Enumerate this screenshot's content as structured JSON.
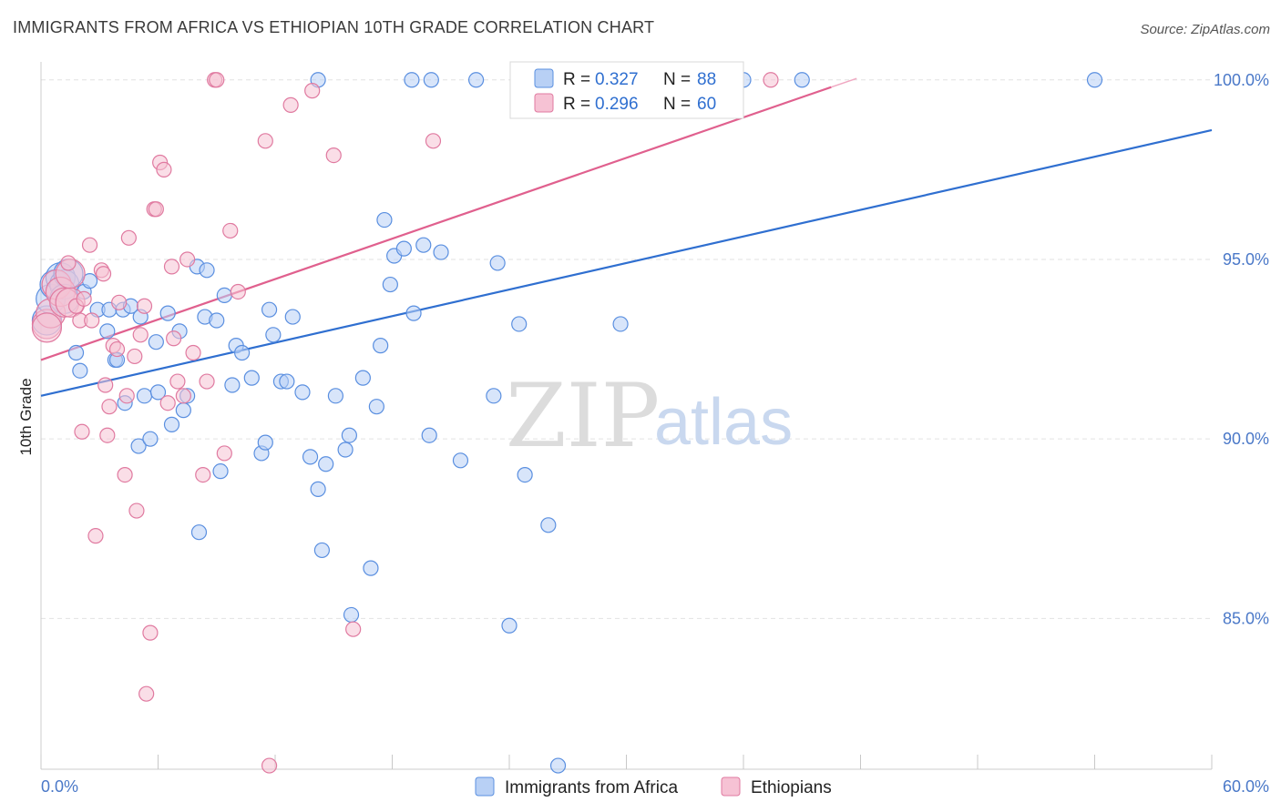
{
  "title": "IMMIGRANTS FROM AFRICA VS ETHIOPIAN 10TH GRADE CORRELATION CHART",
  "source": "Source: ZipAtlas.com",
  "watermark": {
    "zip": "ZIP",
    "atlas": "atlas"
  },
  "legend": {
    "r_label": "R =",
    "n_label": "N =",
    "entries": [
      {
        "r": "0.327",
        "n": "88",
        "color": "#5a8fe0",
        "fill": "#b8d0f5"
      },
      {
        "r": "0.296",
        "n": "60",
        "color": "#e07aa0",
        "fill": "#f6c2d4"
      }
    ]
  },
  "chart_data": {
    "type": "scatter",
    "title": "IMMIGRANTS FROM AFRICA VS ETHIOPIAN 10TH GRADE CORRELATION CHART",
    "xlabel": "",
    "ylabel": "10th Grade",
    "xlim": [
      0,
      60
    ],
    "ylim": [
      80.8,
      100.4
    ],
    "x_tick_labels": [
      "0.0%",
      "60.0%"
    ],
    "y_ticks": [
      {
        "value": 100,
        "label": "100.0%"
      },
      {
        "value": 95,
        "label": "95.0%"
      },
      {
        "value": 90,
        "label": "90.0%"
      },
      {
        "value": 85,
        "label": "85.0%"
      }
    ],
    "grid": true,
    "legend_position": "bottom",
    "series": [
      {
        "name": "Immigrants from Africa",
        "color": "#5a8fe0",
        "fill": "#b8d0f5",
        "trend": {
          "x": [
            0,
            60
          ],
          "y": [
            91.2,
            98.6
          ],
          "color": "#2f6fd0"
        },
        "points": [
          [
            0.3,
            93.3
          ],
          [
            0.5,
            93.9
          ],
          [
            0.7,
            94.3
          ],
          [
            1.0,
            94.5
          ],
          [
            1.2,
            94.3
          ],
          [
            1.4,
            94.6
          ],
          [
            1.2,
            93.9
          ],
          [
            2.2,
            94.1
          ],
          [
            2.5,
            94.4
          ],
          [
            1.8,
            92.4
          ],
          [
            2.0,
            91.9
          ],
          [
            2.9,
            93.6
          ],
          [
            3.5,
            93.6
          ],
          [
            3.4,
            93.0
          ],
          [
            3.8,
            92.2
          ],
          [
            4.2,
            93.6
          ],
          [
            3.9,
            92.2
          ],
          [
            4.6,
            93.7
          ],
          [
            4.3,
            91.0
          ],
          [
            5.1,
            93.4
          ],
          [
            5.0,
            89.8
          ],
          [
            5.3,
            91.2
          ],
          [
            5.6,
            90.0
          ],
          [
            5.9,
            92.7
          ],
          [
            6.0,
            91.3
          ],
          [
            6.5,
            93.5
          ],
          [
            6.7,
            90.4
          ],
          [
            7.1,
            93.0
          ],
          [
            7.3,
            90.8
          ],
          [
            7.5,
            91.2
          ],
          [
            8.0,
            94.8
          ],
          [
            8.5,
            94.7
          ],
          [
            8.4,
            93.4
          ],
          [
            9.0,
            93.3
          ],
          [
            9.2,
            89.1
          ],
          [
            8.1,
            87.4
          ],
          [
            9.4,
            94.0
          ],
          [
            9.8,
            91.5
          ],
          [
            10.0,
            92.6
          ],
          [
            10.3,
            92.4
          ],
          [
            10.8,
            91.7
          ],
          [
            11.3,
            89.6
          ],
          [
            11.5,
            89.9
          ],
          [
            11.7,
            93.6
          ],
          [
            11.9,
            92.9
          ],
          [
            12.3,
            91.6
          ],
          [
            12.6,
            91.6
          ],
          [
            12.9,
            93.4
          ],
          [
            13.4,
            91.3
          ],
          [
            13.8,
            89.5
          ],
          [
            14.2,
            88.6
          ],
          [
            14.4,
            86.9
          ],
          [
            14.6,
            89.3
          ],
          [
            15.1,
            91.2
          ],
          [
            15.6,
            89.7
          ],
          [
            15.8,
            90.1
          ],
          [
            15.9,
            85.1
          ],
          [
            16.5,
            91.7
          ],
          [
            16.9,
            86.4
          ],
          [
            17.2,
            90.9
          ],
          [
            17.4,
            92.6
          ],
          [
            17.6,
            96.1
          ],
          [
            17.9,
            94.3
          ],
          [
            18.1,
            95.1
          ],
          [
            18.6,
            95.3
          ],
          [
            19.1,
            93.5
          ],
          [
            19.6,
            95.4
          ],
          [
            19.9,
            90.1
          ],
          [
            20.5,
            95.2
          ],
          [
            21.5,
            89.4
          ],
          [
            23.2,
            91.2
          ],
          [
            23.4,
            94.9
          ],
          [
            24.0,
            84.8
          ],
          [
            24.5,
            93.2
          ],
          [
            24.8,
            89.0
          ],
          [
            26.0,
            87.6
          ],
          [
            26.5,
            80.9
          ],
          [
            29.7,
            93.2
          ],
          [
            14.2,
            100.0
          ],
          [
            19.0,
            100.0
          ],
          [
            20.0,
            100.0
          ],
          [
            22.3,
            100.0
          ],
          [
            25.0,
            100.0
          ],
          [
            32.9,
            100.0
          ],
          [
            34.0,
            100.0
          ],
          [
            36.0,
            100.0
          ],
          [
            39.0,
            100.0
          ],
          [
            54.0,
            100.0
          ]
        ]
      },
      {
        "name": "Ethiopians",
        "color": "#e07aa0",
        "fill": "#f6c2d4",
        "trend": {
          "x": [
            0,
            40.5
          ],
          "y": [
            92.2,
            99.8
          ],
          "color": "#e0608e"
        },
        "points": [
          [
            0.3,
            93.2
          ],
          [
            0.5,
            93.5
          ],
          [
            0.8,
            94.3
          ],
          [
            1.0,
            94.1
          ],
          [
            1.2,
            93.8
          ],
          [
            1.5,
            94.6
          ],
          [
            1.5,
            93.8
          ],
          [
            1.4,
            94.9
          ],
          [
            1.8,
            93.7
          ],
          [
            2.0,
            93.3
          ],
          [
            2.2,
            93.9
          ],
          [
            2.1,
            90.2
          ],
          [
            2.5,
            95.4
          ],
          [
            2.6,
            93.3
          ],
          [
            2.8,
            87.3
          ],
          [
            3.1,
            94.7
          ],
          [
            3.2,
            94.6
          ],
          [
            3.3,
            91.5
          ],
          [
            3.5,
            90.9
          ],
          [
            3.7,
            92.6
          ],
          [
            3.9,
            92.5
          ],
          [
            4.0,
            93.8
          ],
          [
            4.3,
            89.0
          ],
          [
            4.4,
            91.2
          ],
          [
            4.5,
            95.6
          ],
          [
            4.8,
            92.3
          ],
          [
            4.9,
            88.0
          ],
          [
            5.1,
            92.9
          ],
          [
            5.3,
            93.7
          ],
          [
            5.6,
            84.6
          ],
          [
            5.8,
            96.4
          ],
          [
            5.9,
            96.4
          ],
          [
            6.1,
            97.7
          ],
          [
            6.3,
            97.5
          ],
          [
            6.5,
            91.0
          ],
          [
            6.7,
            94.8
          ],
          [
            6.8,
            92.8
          ],
          [
            7.0,
            91.6
          ],
          [
            7.3,
            91.2
          ],
          [
            7.5,
            95.0
          ],
          [
            7.8,
            92.4
          ],
          [
            8.3,
            89.0
          ],
          [
            8.5,
            91.6
          ],
          [
            8.9,
            100.0
          ],
          [
            9.0,
            100.0
          ],
          [
            9.4,
            89.6
          ],
          [
            9.7,
            95.8
          ],
          [
            10.1,
            94.1
          ],
          [
            11.5,
            98.3
          ],
          [
            11.7,
            80.9
          ],
          [
            12.8,
            99.3
          ],
          [
            13.9,
            99.7
          ],
          [
            15.0,
            97.9
          ],
          [
            16.0,
            84.7
          ],
          [
            20.1,
            98.3
          ],
          [
            33.8,
            100.0
          ],
          [
            37.4,
            100.0
          ],
          [
            5.4,
            82.9
          ],
          [
            0.3,
            93.1
          ],
          [
            3.4,
            90.1
          ]
        ]
      }
    ]
  }
}
